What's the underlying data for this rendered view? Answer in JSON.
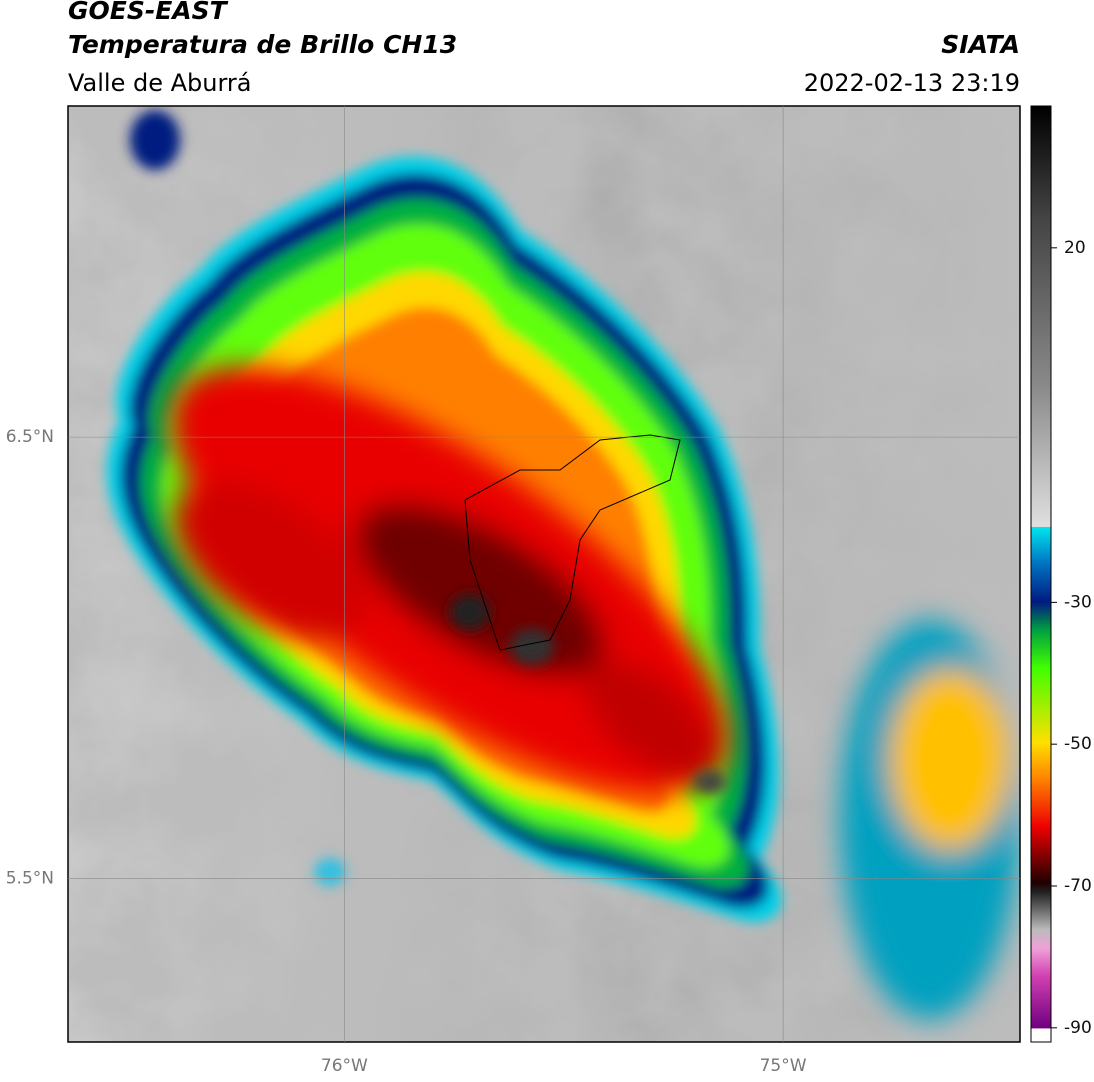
{
  "header": {
    "title": "GOES-EAST",
    "subtitle": "Temperatura de Brillo CH13",
    "region": "Valle de Aburrá",
    "source": "SIATA",
    "datetime": "2022-02-13 23:19"
  },
  "map": {
    "xlim": [
      -76.63,
      -74.46
    ],
    "ylim": [
      5.13,
      7.25
    ],
    "xticks": [
      {
        "value": -76,
        "label": "76°W"
      },
      {
        "value": -75,
        "label": "75°W"
      }
    ],
    "yticks": [
      {
        "value": 6.5,
        "label": "6.5°N"
      },
      {
        "value": 5.5,
        "label": "5.5°N"
      }
    ]
  },
  "colorbar": {
    "range": [
      -92,
      40
    ],
    "ticks": [
      20,
      -30,
      -50,
      -70,
      -90
    ]
  }
}
